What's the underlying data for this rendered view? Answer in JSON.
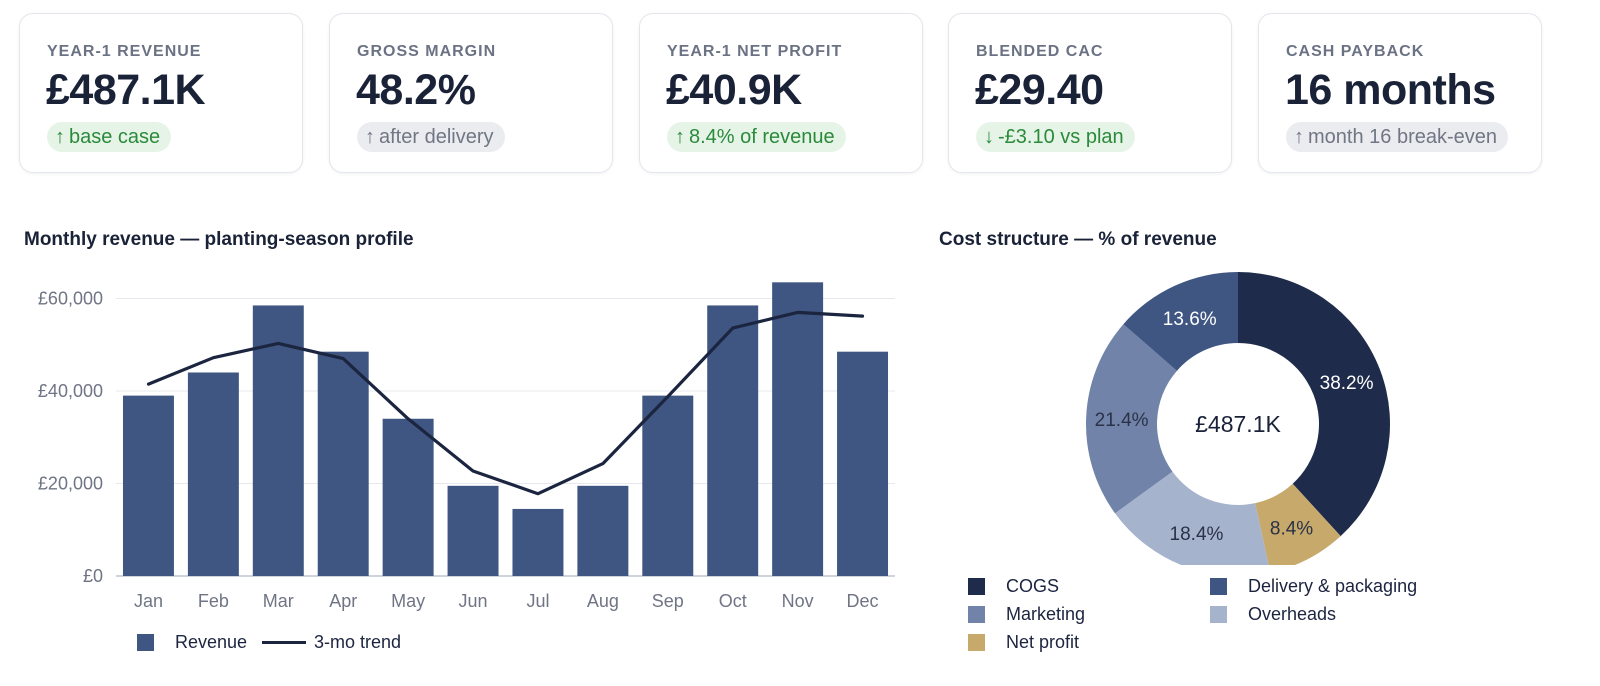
{
  "kpis": [
    {
      "label": "YEAR-1 REVENUE",
      "value": "£487.1K",
      "badge": "base case",
      "arrow": "↑",
      "tone": "up"
    },
    {
      "label": "GROSS MARGIN",
      "value": "48.2%",
      "badge": "after delivery",
      "arrow": "↑",
      "tone": "neutral"
    },
    {
      "label": "YEAR-1 NET PROFIT",
      "value": "£40.9K",
      "badge": "8.4% of revenue",
      "arrow": "↑",
      "tone": "up"
    },
    {
      "label": "BLENDED CAC",
      "value": "£29.40",
      "badge": "-£3.10 vs plan",
      "arrow": "↓",
      "tone": "up"
    },
    {
      "label": "CASH PAYBACK",
      "value": "16 months",
      "badge": "month 16 break-even",
      "arrow": "↑",
      "tone": "neutral"
    }
  ],
  "colors": {
    "bar": "#3f5582",
    "trend": "#1c2540",
    "grid": "#e6e8ee",
    "badge_up_bg": "#e6f4e8",
    "badge_up_text": "#2b8a3a",
    "badge_neutral_bg": "#ebecef",
    "badge_neutral_text": "#707684"
  },
  "chart_data": [
    {
      "type": "bar",
      "title": "Monthly revenue — planting-season profile",
      "categories": [
        "Jan",
        "Feb",
        "Mar",
        "Apr",
        "May",
        "Jun",
        "Jul",
        "Aug",
        "Sep",
        "Oct",
        "Nov",
        "Dec"
      ],
      "series": [
        {
          "name": "Revenue",
          "type": "bar",
          "color": "#3f5582",
          "values": [
            39000,
            44000,
            58500,
            48500,
            34000,
            19500,
            14500,
            19500,
            39000,
            58500,
            63500,
            48500
          ]
        },
        {
          "name": "3-mo trend",
          "type": "line",
          "color": "#1c2540",
          "values": [
            41500,
            47200,
            50300,
            47000,
            34000,
            22700,
            17800,
            24300,
            38800,
            53600,
            57000,
            56200
          ]
        }
      ],
      "yticks": [
        0,
        20000,
        40000,
        60000
      ],
      "ytick_labels": [
        "£0",
        "£20,000",
        "£40,000",
        "£60,000"
      ],
      "ylim": [
        0,
        64000
      ],
      "xlabel": "",
      "ylabel": "",
      "grid": true,
      "legend": "bottom"
    },
    {
      "type": "pie",
      "title": "Cost structure — % of revenue",
      "center_label": "£487.1K",
      "slices": [
        {
          "name": "COGS",
          "value": 38.2,
          "label": "38.2%",
          "color": "#1f2b4a"
        },
        {
          "name": "Net profit",
          "value": 8.4,
          "label": "8.4%",
          "color": "#c6a96b"
        },
        {
          "name": "Overheads",
          "value": 18.4,
          "label": "18.4%",
          "color": "#a6b3cd"
        },
        {
          "name": "Marketing",
          "value": 21.4,
          "label": "21.4%",
          "color": "#7183a9"
        },
        {
          "name": "Delivery & packaging",
          "value": 13.6,
          "label": "13.6%",
          "color": "#3f5582"
        }
      ],
      "legend_order": [
        "COGS",
        "Delivery & packaging",
        "Marketing",
        "Overheads",
        "Net profit"
      ],
      "legend": "bottom"
    }
  ]
}
